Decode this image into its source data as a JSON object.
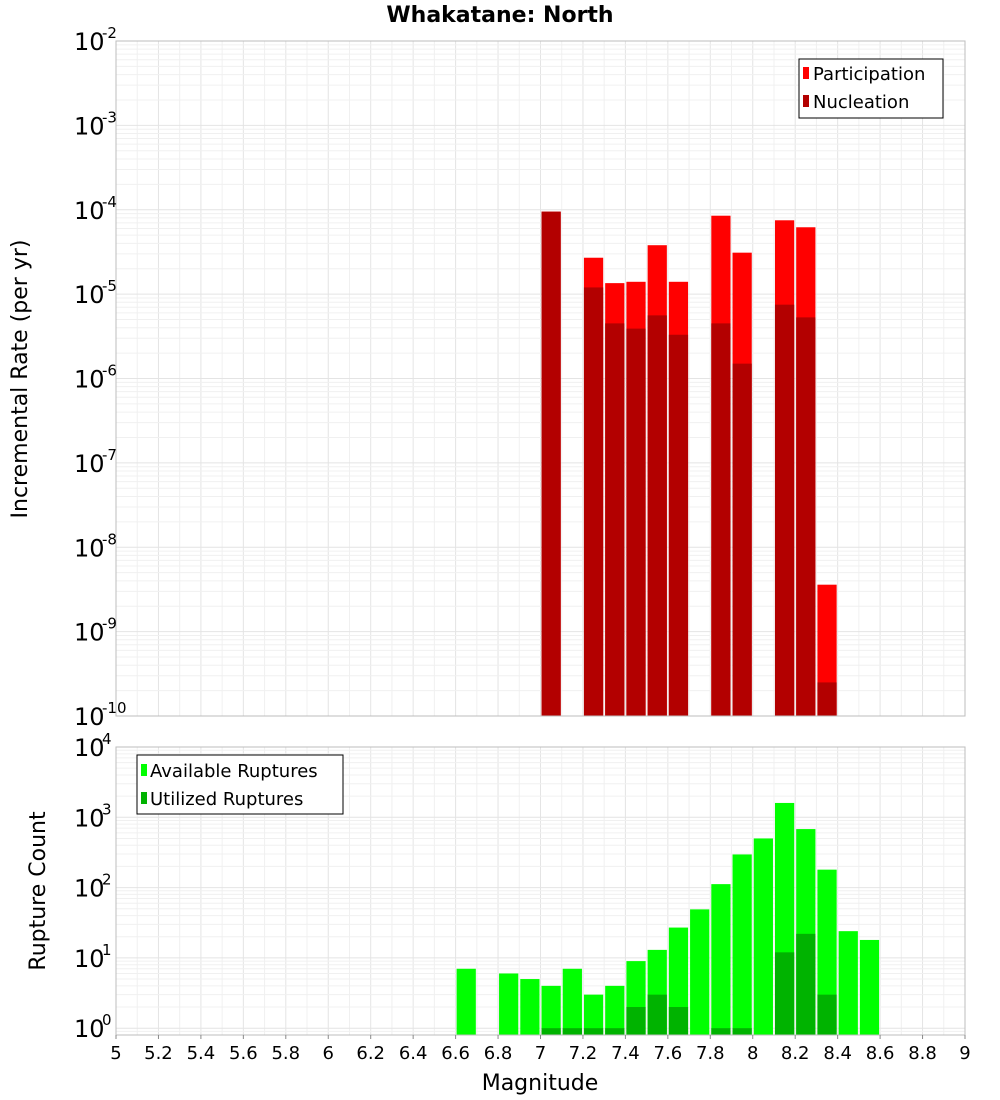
{
  "chart_data": [
    {
      "type": "bar",
      "title": "Whakatane: North",
      "xlabel": "",
      "ylabel": "Incremental Rate (per yr)",
      "yscale": "log",
      "ylim": [
        1e-10,
        0.01
      ],
      "xlim": [
        5,
        9
      ],
      "grid": true,
      "legend_position": "top-right",
      "bin_width": 0.1,
      "series": [
        {
          "name": "Participation",
          "color": "#ff0000",
          "x": [
            7.05,
            7.25,
            7.35,
            7.45,
            7.55,
            7.65,
            7.85,
            7.95,
            8.15,
            8.25,
            8.35
          ],
          "values": [
            9.5e-05,
            2.7e-05,
            1.35e-05,
            1.4e-05,
            3.8e-05,
            1.4e-05,
            8.5e-05,
            3.1e-05,
            7.5e-05,
            6.2e-05,
            3.6e-09
          ]
        },
        {
          "name": "Nucleation",
          "color": "#b30000",
          "x": [
            7.05,
            7.25,
            7.35,
            7.45,
            7.55,
            7.65,
            7.85,
            7.95,
            8.15,
            8.25,
            8.35
          ],
          "values": [
            9.5e-05,
            1.2e-05,
            4.5e-06,
            3.9e-06,
            5.6e-06,
            3.3e-06,
            4.5e-06,
            1.5e-06,
            7.5e-06,
            5.3e-06,
            2.5e-10
          ]
        }
      ],
      "ytick_labels": [
        {
          "base": "10",
          "exp": "-10"
        },
        {
          "base": "10",
          "exp": "-9"
        },
        {
          "base": "10",
          "exp": "-8"
        },
        {
          "base": "10",
          "exp": "-7"
        },
        {
          "base": "10",
          "exp": "-6"
        },
        {
          "base": "10",
          "exp": "-5"
        },
        {
          "base": "10",
          "exp": "-4"
        },
        {
          "base": "10",
          "exp": "-3"
        },
        {
          "base": "10",
          "exp": "-2"
        }
      ]
    },
    {
      "type": "bar",
      "title": "",
      "xlabel": "Magnitude",
      "ylabel": "Rupture Count",
      "yscale": "log",
      "ylim": [
        0.8,
        10000
      ],
      "xlim": [
        5,
        9
      ],
      "grid": true,
      "legend_position": "top-left",
      "bin_width": 0.1,
      "series": [
        {
          "name": "Available Ruptures",
          "color": "#00ff00",
          "x": [
            6.65,
            6.85,
            6.95,
            7.05,
            7.15,
            7.25,
            7.35,
            7.45,
            7.55,
            7.65,
            7.75,
            7.85,
            7.95,
            8.05,
            8.15,
            8.25,
            8.35,
            8.45,
            8.55
          ],
          "values": [
            7,
            6,
            5,
            4,
            7,
            3,
            4,
            9,
            13,
            27,
            49,
            112,
            296,
            500,
            1600,
            680,
            180,
            24,
            18
          ]
        },
        {
          "name": "Utilized Ruptures",
          "color": "#00b300",
          "x": [
            7.05,
            7.15,
            7.25,
            7.35,
            7.45,
            7.55,
            7.65,
            7.85,
            7.95,
            8.15,
            8.25,
            8.35
          ],
          "values": [
            1,
            1,
            1,
            1,
            2,
            3,
            2,
            1,
            1,
            12,
            22,
            3
          ]
        }
      ],
      "xtick_labels": [
        "5",
        "5.2",
        "5.4",
        "5.6",
        "5.8",
        "6",
        "6.2",
        "6.4",
        "6.6",
        "6.8",
        "7",
        "7.2",
        "7.4",
        "7.6",
        "7.8",
        "8",
        "8.2",
        "8.4",
        "8.6",
        "8.8",
        "9"
      ],
      "ytick_labels": [
        {
          "base": "10",
          "exp": "0"
        },
        {
          "base": "10",
          "exp": "1"
        },
        {
          "base": "10",
          "exp": "2"
        },
        {
          "base": "10",
          "exp": "3"
        },
        {
          "base": "10",
          "exp": "4"
        }
      ]
    }
  ]
}
